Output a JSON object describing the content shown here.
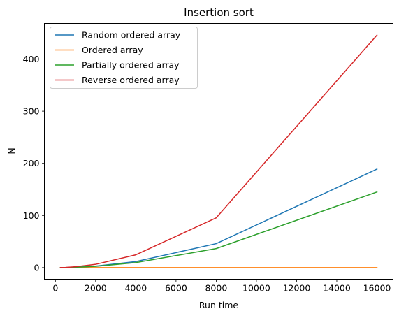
{
  "chart_data": {
    "type": "line",
    "title": "Insertion sort",
    "xlabel": "Run time",
    "ylabel": "N",
    "x": [
      250,
      500,
      1000,
      2000,
      4000,
      8000,
      16000
    ],
    "series": [
      {
        "name": "Random ordered array",
        "color": "#1f77b4",
        "values": [
          0.05,
          0.2,
          0.7,
          2.9,
          11.5,
          46,
          189
        ]
      },
      {
        "name": "Ordered array",
        "color": "#ff7f0e",
        "values": [
          0.0,
          0.0,
          0.0,
          0.0,
          0.0,
          0.0,
          0.0
        ]
      },
      {
        "name": "Partially ordered array",
        "color": "#2ca02c",
        "values": [
          0.04,
          0.15,
          0.6,
          2.4,
          9.5,
          36.5,
          145
        ]
      },
      {
        "name": "Reverse ordered array",
        "color": "#d62728",
        "values": [
          0.1,
          0.4,
          1.6,
          6.3,
          24.5,
          95.5,
          446
        ]
      }
    ],
    "xlim": [
      -550,
      16800
    ],
    "ylim": [
      -22.3,
      468.4
    ],
    "xticks": [
      0,
      2000,
      4000,
      6000,
      8000,
      10000,
      12000,
      14000,
      16000
    ],
    "xtick_labels": [
      "0",
      "2000",
      "4000",
      "6000",
      "8000",
      "10000",
      "12000",
      "14000",
      "16000"
    ],
    "yticks": [
      0,
      100,
      200,
      300,
      400
    ],
    "ytick_labels": [
      "0",
      "100",
      "200",
      "300",
      "400"
    ],
    "grid": false,
    "legend_position": "top-left"
  }
}
